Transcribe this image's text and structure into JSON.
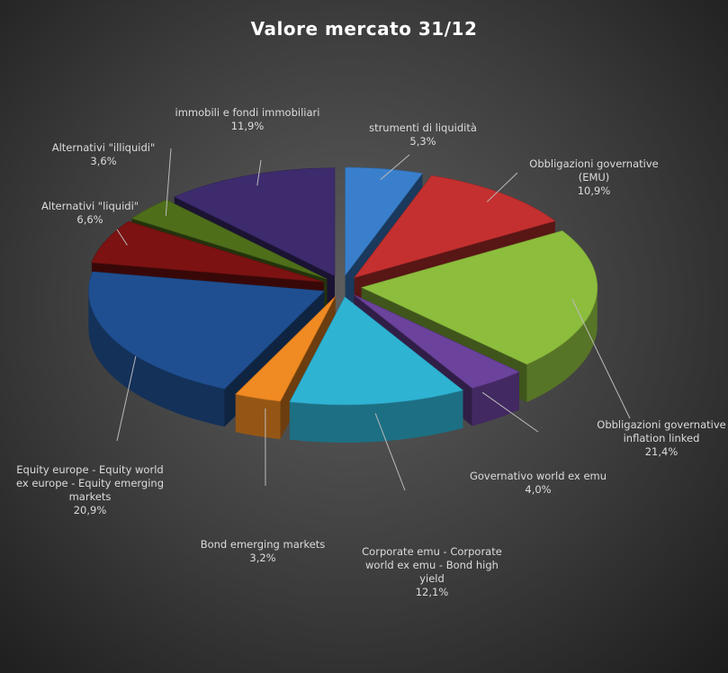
{
  "chart_data": {
    "type": "pie3d",
    "title": "Valore mercato 31/12",
    "categories": [
      "strumenti di liquidità",
      "Obbligazioni governative (EMU)",
      "Obbligazioni governative inflation linked",
      "Governativo world ex emu",
      "Corporate emu - Corporate world ex emu - Bond high yield",
      "Bond emerging markets",
      "Equity europe - Equity world ex europe - Equity emerging markets",
      "Alternativi \"liquidi\"",
      "Alternativi \"illiquidi\"",
      "immobili e fondi immobiliari"
    ],
    "values": [
      5.3,
      10.9,
      21.4,
      4.0,
      12.1,
      3.2,
      20.9,
      6.6,
      3.6,
      11.9
    ],
    "value_labels": [
      "5,3%",
      "10,9%",
      "21,4%",
      "4,0%",
      "12,1%",
      "3,2%",
      "20,9%",
      "6,6%",
      "3,6%",
      "11,9%"
    ],
    "colors": [
      "#3a7fcc",
      "#c4302f",
      "#8dbd3d",
      "#6b429c",
      "#2fb3d3",
      "#f08a22",
      "#1f4f90",
      "#7c1212",
      "#4e6e1a",
      "#3d2b6e"
    ]
  }
}
